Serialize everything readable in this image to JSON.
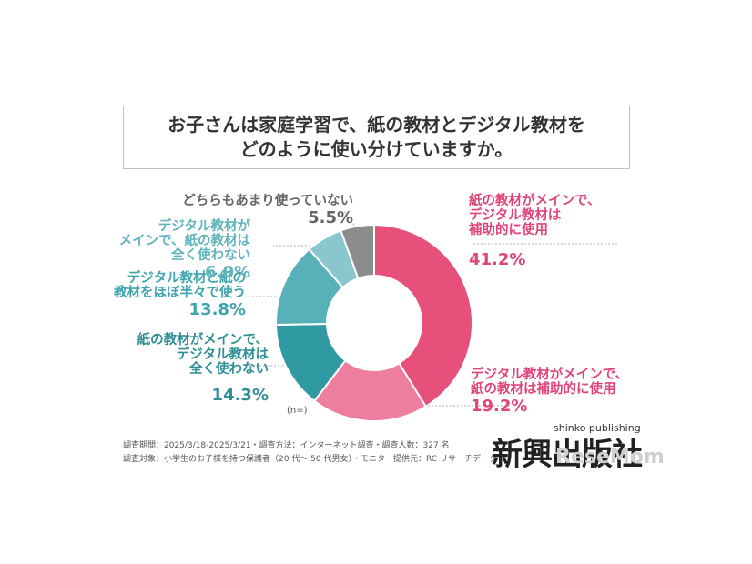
{
  "title_lines": [
    "お子さんは家庭学習で、紙の教材とデジタル教材を",
    "どのように使い分けていますか。"
  ],
  "chart_data": {
    "type": "pie",
    "variant": "donut",
    "slices": [
      {
        "lines": [
          "紙の教材がメインで、",
          "デジタル教材は",
          "補助的に使用"
        ],
        "value": 41.2,
        "pct_label": "41.2%",
        "color": "#e6507a",
        "label_color": "#e0457a"
      },
      {
        "lines": [
          "デジタル教材がメインで、",
          "紙の教材は補助的に使用"
        ],
        "value": 19.2,
        "pct_label": "19.2%",
        "color": "#ee7e9f",
        "label_color": "#e0457a"
      },
      {
        "lines": [
          "紙の教材がメインで、",
          "デジタル教材は",
          "全く使わない"
        ],
        "value": 14.3,
        "pct_label": "14.3%",
        "color": "#2f9aa1",
        "label_color": "#2f8e96"
      },
      {
        "lines": [
          "デジタル教材と紙の",
          "教材をほぼ半々で使う"
        ],
        "value": 13.8,
        "pct_label": "13.8%",
        "color": "#58b1b9",
        "label_color": "#3ea4ad"
      },
      {
        "lines": [
          "デジタル教材が",
          "メインで、紙の教材は",
          "全く使わない"
        ],
        "value": 6.0,
        "pct_label": "6.0%",
        "color": "#8ac6cd",
        "label_color": "#5fb3bb"
      },
      {
        "lines": [
          "どちらもあまり使っていない"
        ],
        "value": 5.5,
        "pct_label": "5.5%",
        "color": "#8c8c8c",
        "label_color": "#666666"
      }
    ]
  },
  "n_label": "(n=)",
  "footnotes": [
    "調査期間：2025/3/18-2025/3/21・調査方法：インターネット調査・調査人数：327 名",
    "調査対象：小学生のお子様を持つ保護者（20 代〜 50 代男女）・モニター提供元：RC リサーチデータ"
  ],
  "logo": {
    "kanji": "新興出版社",
    "roman": "shinko publishing",
    "watermark": "ReseMom"
  }
}
